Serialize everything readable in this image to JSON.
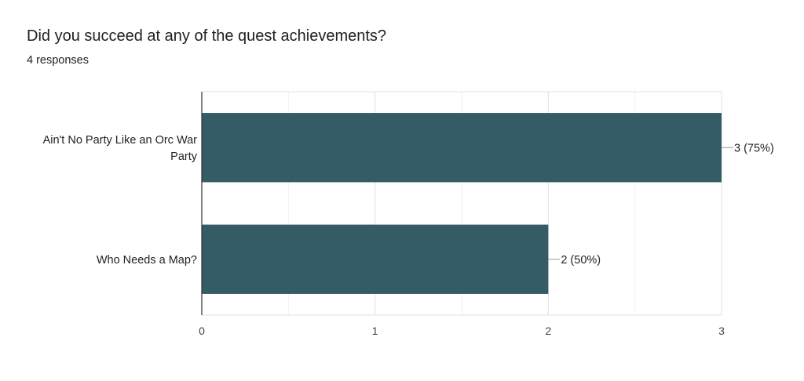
{
  "title": "Did you succeed at any of the quest achievements?",
  "subtitle": "4 responses",
  "chart_data": {
    "type": "bar",
    "orientation": "horizontal",
    "categories": [
      [
        "Ain't No Party Like an Orc War",
        "Party"
      ],
      [
        "Who Needs a Map?"
      ]
    ],
    "values": [
      3,
      2
    ],
    "data_labels": [
      "3 (75%)",
      "2 (50%)"
    ],
    "x_ticks": [
      "0",
      "1",
      "2",
      "3"
    ],
    "xlim": [
      0,
      3
    ],
    "grid": true,
    "bar_color": "#345b66"
  }
}
